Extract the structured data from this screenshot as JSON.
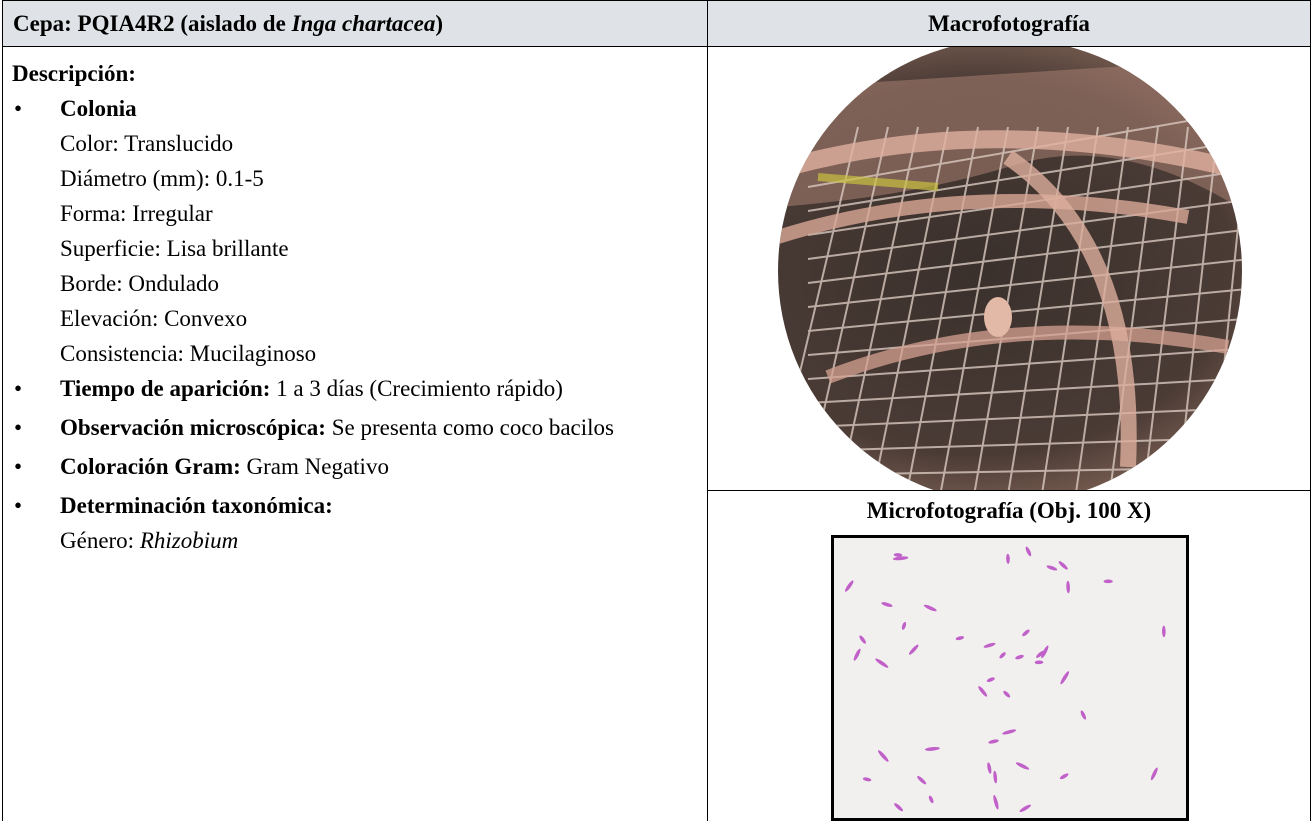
{
  "header": {
    "left": {
      "prefix": "Cepa: PQIA4R2 (aislado de",
      "species": "Inga chartacea",
      "suffix": ")"
    },
    "right": "Macrofotografía"
  },
  "description": {
    "title": "Descripción:",
    "colonia": {
      "label": "Colonia",
      "lines": [
        "Color: Translucido",
        "Diámetro (mm): 0.1-5",
        "Forma: Irregular",
        "Superficie: Lisa brillante",
        "Borde: Ondulado",
        "Elevación: Convexo",
        "Consistencia: Mucilaginoso"
      ]
    },
    "tiempo": {
      "label": "Tiempo de aparición:",
      "text": "1 a 3 días (Crecimiento rápido)"
    },
    "observacion": {
      "label": "Observación microscópica:",
      "text": "Se presenta como coco bacilos"
    },
    "gram": {
      "label": "Coloración Gram:",
      "text": "Gram Negativo"
    },
    "taxonomia": {
      "label": "Determinación taxonómica:",
      "genus_label": "Género:",
      "genus": "Rhizobium"
    }
  },
  "micro": {
    "title": "Microfotografía (Obj. 100 X)"
  }
}
